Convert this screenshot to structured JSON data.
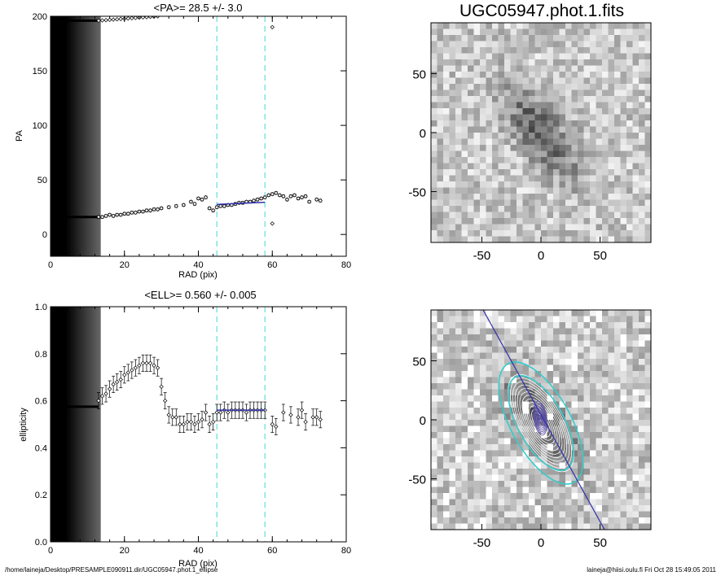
{
  "footer": {
    "path": "/home/laineja/Desktop/PRESAMPLE090911.dir/UGC05947.phot.1_ellipse",
    "user_date": "laineja@hiisi.oulu.fi  Fri Oct 28 15:49:05 2011"
  },
  "colors": {
    "guide_lines": "#66dddd",
    "fit_line": "#3030b0",
    "contour": "#ffffff",
    "highlight_contour": "#33cccc"
  },
  "chart_data": [
    {
      "type": "scatter",
      "title": "<PA>=  28.5 +/-   3.0",
      "xlabel": "RAD (pix)",
      "ylabel": "PA",
      "xlim": [
        0,
        80
      ],
      "ylim": [
        -20,
        200
      ],
      "xticks": [
        "0",
        "20",
        "40",
        "60",
        "80"
      ],
      "yticks": [
        "0",
        "50",
        "100",
        "150",
        "200"
      ],
      "guide_x": [
        45,
        58
      ],
      "fit_line": {
        "x": [
          45,
          58
        ],
        "y": [
          27.5,
          29.5
        ]
      },
      "x": [
        13,
        14,
        15,
        16,
        17,
        18,
        19,
        20,
        21,
        22,
        23,
        24,
        25,
        26,
        27,
        28,
        29,
        30,
        32,
        34,
        36,
        38,
        39,
        40,
        41,
        42,
        43,
        44,
        45,
        46,
        47,
        48,
        49,
        50,
        51,
        52,
        53,
        54,
        55,
        56,
        57,
        58,
        59,
        60,
        61,
        62,
        63,
        64,
        65,
        66,
        67,
        68,
        69,
        70,
        72,
        73
      ],
      "y": [
        16,
        16,
        17,
        18,
        17,
        18,
        18,
        19,
        19,
        20,
        20,
        21,
        21,
        22,
        22,
        23,
        23,
        24,
        25,
        26,
        27,
        30,
        28,
        33,
        32,
        34,
        24,
        22,
        25,
        26,
        26,
        27,
        27,
        28,
        29,
        29,
        30,
        30,
        31,
        32,
        33,
        34,
        36,
        37,
        38,
        36,
        35,
        32,
        35,
        36,
        33,
        34,
        35,
        30,
        32,
        31
      ],
      "extra_points": [
        {
          "x": 60,
          "y": 10
        },
        {
          "x": 60,
          "y": 190
        }
      ]
    },
    {
      "type": "scatter",
      "title": "<ELL>= 0.560 +/-  0.005",
      "xlabel": "RAD (pix)",
      "ylabel": "ellipticity",
      "xlim": [
        0,
        80
      ],
      "ylim": [
        0.0,
        1.0
      ],
      "xticks": [
        "0",
        "20",
        "40",
        "60",
        "80"
      ],
      "yticks": [
        "0.0",
        "0.2",
        "0.4",
        "0.6",
        "0.8",
        "1.0"
      ],
      "guide_x": [
        45,
        58
      ],
      "fit_line": {
        "x": [
          45,
          58
        ],
        "y": [
          0.56,
          0.56
        ]
      },
      "x": [
        13,
        14,
        15,
        16,
        17,
        18,
        19,
        20,
        21,
        22,
        23,
        24,
        25,
        26,
        27,
        28,
        29,
        30,
        31,
        32,
        33,
        34,
        35,
        36,
        37,
        38,
        39,
        40,
        41,
        42,
        43,
        44,
        45,
        46,
        47,
        48,
        49,
        50,
        51,
        52,
        53,
        54,
        55,
        56,
        57,
        58,
        60,
        61,
        63,
        65,
        67,
        68,
        69,
        71,
        72,
        73
      ],
      "y": [
        0.6,
        0.62,
        0.63,
        0.65,
        0.67,
        0.68,
        0.69,
        0.71,
        0.72,
        0.73,
        0.74,
        0.75,
        0.76,
        0.76,
        0.76,
        0.75,
        0.74,
        0.66,
        0.6,
        0.54,
        0.53,
        0.53,
        0.5,
        0.5,
        0.51,
        0.51,
        0.5,
        0.51,
        0.52,
        0.55,
        0.5,
        0.51,
        0.55,
        0.55,
        0.56,
        0.55,
        0.56,
        0.56,
        0.56,
        0.56,
        0.55,
        0.56,
        0.56,
        0.56,
        0.56,
        0.56,
        0.5,
        0.49,
        0.55,
        0.54,
        0.53,
        0.56,
        0.51,
        0.53,
        0.53,
        0.52
      ],
      "err": 0.035
    },
    {
      "type": "heatmap",
      "title": "UGC05947.phot.1.fits",
      "xlim": [
        -93,
        93
      ],
      "ylim": [
        -93,
        93
      ],
      "xticks": [
        "-50",
        "0",
        "50"
      ],
      "yticks": [
        "50",
        "0",
        "-50"
      ]
    },
    {
      "type": "heatmap",
      "title": "",
      "xlim": [
        -93,
        93
      ],
      "ylim": [
        -93,
        93
      ],
      "xticks": [
        "-50",
        "0",
        "50"
      ],
      "yticks": [
        "50",
        "0",
        "-50"
      ]
    }
  ]
}
